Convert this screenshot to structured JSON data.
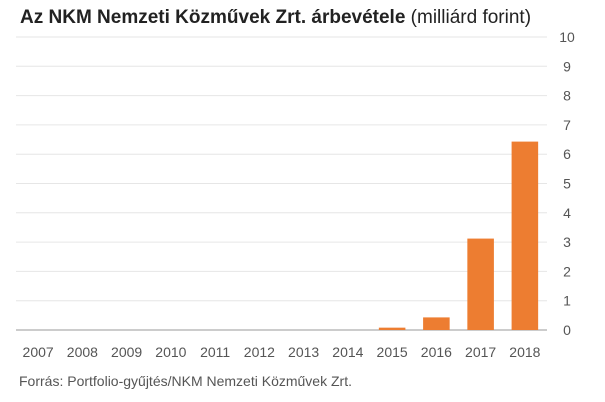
{
  "chart_data": {
    "type": "bar",
    "title": "Az NKM Nemzeti Közművek Zrt. árbevétele",
    "title_unit": "(milliárd forint)",
    "source": "Forrás: Portfolio-gyűjtés/NKM Nemzeti Közművek Zrt.",
    "categories": [
      "2007",
      "2008",
      "2009",
      "2010",
      "2011",
      "2012",
      "2013",
      "2014",
      "2015",
      "2016",
      "2017",
      "2018"
    ],
    "values": [
      0,
      0,
      0,
      0,
      0,
      0,
      0,
      0,
      0.08,
      0.43,
      3.12,
      6.43
    ],
    "ylim": [
      0,
      10
    ],
    "yticks": [
      0,
      1,
      2,
      3,
      4,
      5,
      6,
      7,
      8,
      9,
      10
    ],
    "y_axis_position": "right",
    "grid": true,
    "bar_color": "#ed7d31",
    "grid_color": "#e6e6e6",
    "baseline_color": "#999999"
  }
}
